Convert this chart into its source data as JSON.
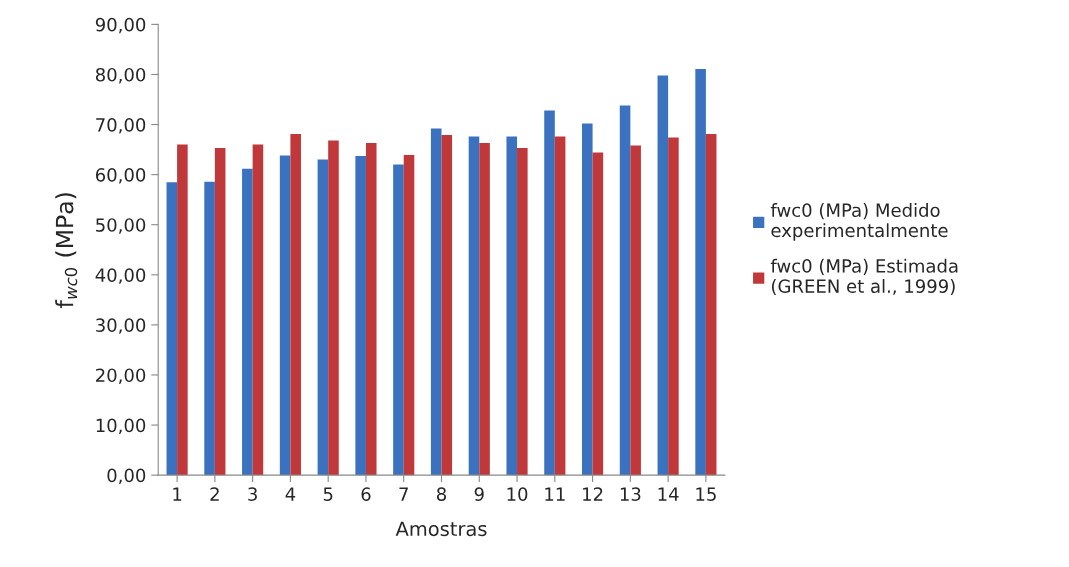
{
  "chart_data": {
    "type": "bar",
    "xlabel": "Amostras",
    "ylabel": "f$_{wc0}$ (MPa)",
    "categories": [
      "1",
      "2",
      "3",
      "4",
      "5",
      "6",
      "7",
      "8",
      "9",
      "10",
      "11",
      "12",
      "13",
      "14",
      "15"
    ],
    "series": [
      {
        "name": "fwc0 (MPa) Medido experimentalmente",
        "color": "#3a72c0",
        "values": [
          58.5,
          58.6,
          61.2,
          63.8,
          63.0,
          63.7,
          62.0,
          69.2,
          67.6,
          67.6,
          72.8,
          70.2,
          73.8,
          79.8,
          81.1
        ]
      },
      {
        "name": "fwc0 (MPa) Estimada (GREEN et al., 1999)",
        "color": "#c0383a",
        "values": [
          66.0,
          65.3,
          66.0,
          68.1,
          66.8,
          66.3,
          63.9,
          67.9,
          66.3,
          65.3,
          67.6,
          64.4,
          65.8,
          67.4,
          68.1
        ]
      }
    ],
    "ylim": [
      0,
      90
    ],
    "yticks": [
      {
        "value": 0,
        "label": "0,00"
      },
      {
        "value": 10,
        "label": "10,00"
      },
      {
        "value": 20,
        "label": "20,00"
      },
      {
        "value": 30,
        "label": "30,00"
      },
      {
        "value": 40,
        "label": "40,00"
      },
      {
        "value": 50,
        "label": "50,00"
      },
      {
        "value": 60,
        "label": "60,00"
      },
      {
        "value": 70,
        "label": "70,00"
      },
      {
        "value": 80,
        "label": "80,00"
      },
      {
        "value": 90,
        "label": "90,00"
      }
    ],
    "grid": false,
    "legend": "right"
  }
}
